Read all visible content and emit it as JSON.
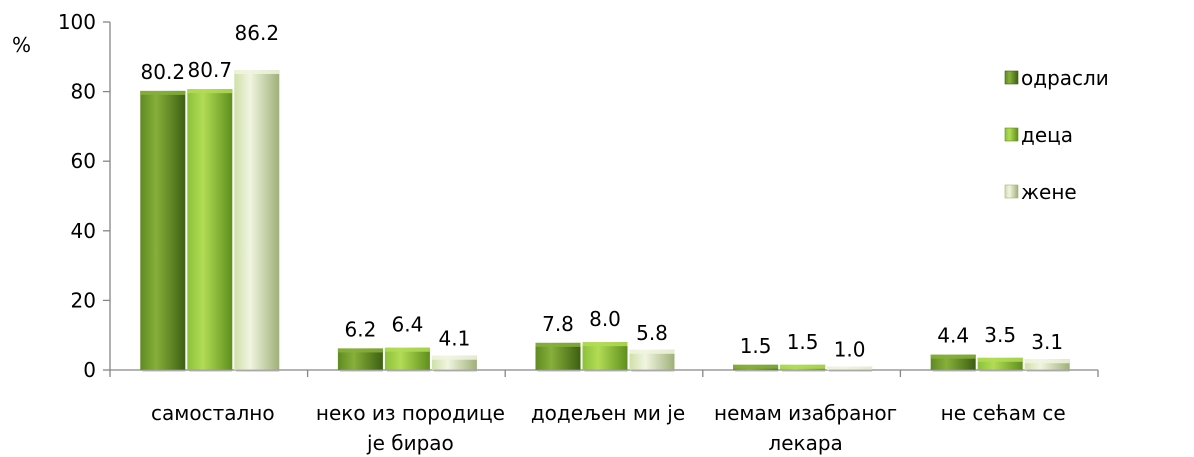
{
  "chart_data": {
    "type": "bar",
    "y_unit": "%",
    "ylim": [
      0,
      100
    ],
    "yticks": [
      0,
      20,
      40,
      60,
      80,
      100
    ],
    "grid": false,
    "legend_position": "right",
    "categories": [
      [
        "самостално"
      ],
      [
        "неко из породице",
        "је бирао"
      ],
      [
        "додељен ми је"
      ],
      [
        "немам изабраног",
        "лекара"
      ],
      [
        "не сећам се"
      ]
    ],
    "series": [
      {
        "name": "одрасли",
        "values": [
          80.2,
          6.2,
          7.8,
          1.5,
          4.4
        ],
        "labels": [
          "80.2",
          "6.2",
          "7.8",
          "1.5",
          "4.4"
        ],
        "colors": {
          "light": "#86b03a",
          "mid": "#5f8a22",
          "dark": "#3d5f12"
        }
      },
      {
        "name": "деца",
        "values": [
          80.7,
          6.4,
          8.0,
          1.5,
          3.5
        ],
        "labels": [
          "80.7",
          "6.4",
          "8.0",
          "1.5",
          "3.5"
        ],
        "colors": {
          "light": "#b2dc55",
          "mid": "#8cc13a",
          "dark": "#5e8f1c"
        }
      },
      {
        "name": "жене",
        "values": [
          86.2,
          4.1,
          5.8,
          1.0,
          3.1
        ],
        "labels": [
          "86.2",
          "4.1",
          "5.8",
          "1.0",
          "3.1"
        ],
        "colors": {
          "light": "#f0f5e0",
          "mid": "#cfe0a8",
          "dark": "#9fb078"
        }
      }
    ]
  }
}
